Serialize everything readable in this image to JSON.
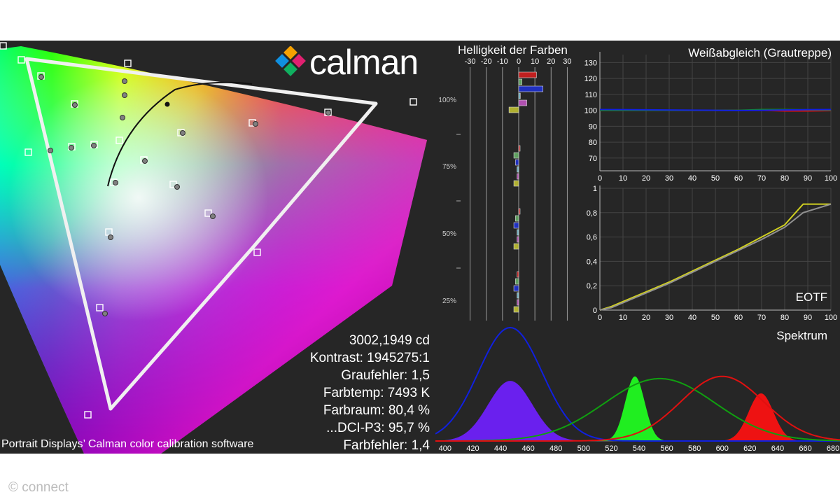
{
  "brand": {
    "name": "calman"
  },
  "caption": "Portrait Displays’ Calman color calibration software",
  "credit": "© connect",
  "stats": [
    "3002,1949 cd",
    "Kontrast: 1945275:1",
    "Graufehler: 1,5",
    "Farbtemp: 7493 K",
    "Farbraum: 80,4 %",
    "...DCI-P3: 95,7 %",
    "Farbfehler: 1,4"
  ],
  "colors": {
    "background": "#262626",
    "gamut_line": "#ffffff",
    "red": "#e01010",
    "green": "#10a010",
    "blue": "#1020e0",
    "yellow": "#f0f020",
    "grey": "#909090"
  },
  "chart_data": [
    {
      "id": "cie",
      "type": "scatter",
      "title": "",
      "description_words": "CIE chromaticity diagram with measured gamut triangle",
      "gamut_triangle_vertices": [
        "red",
        "green",
        "blue"
      ]
    },
    {
      "id": "brightness",
      "type": "bar",
      "title": "Helligkeit der Farben",
      "xticks": [
        "-30",
        "-20",
        "-10",
        "0",
        "10",
        "20",
        "30"
      ],
      "xlim": [
        -35,
        35
      ],
      "yticks": [
        "100%",
        "75%",
        "50%",
        "25%"
      ],
      "groups": [
        {
          "level": "100%",
          "values": [
            11,
            2,
            15,
            1,
            5,
            -6
          ]
        },
        {
          "level": "75%",
          "values": [
            0,
            -3,
            -2,
            -1,
            -1,
            -3
          ]
        },
        {
          "level": "50%",
          "values": [
            0,
            -2,
            -3,
            -1,
            -1,
            -3
          ]
        },
        {
          "level": "25%",
          "values": [
            -1,
            -2,
            -3,
            -1,
            -1,
            -3
          ]
        }
      ],
      "bar_colors": [
        "red",
        "green",
        "blue",
        "cyan",
        "magenta",
        "yellow"
      ]
    },
    {
      "id": "whitebalance",
      "type": "line",
      "title": "Weißabgleich (Grautreppe)",
      "x": [
        0,
        10,
        20,
        30,
        40,
        50,
        60,
        70,
        80,
        90,
        100
      ],
      "xticks": [
        "0",
        "10",
        "20",
        "30",
        "40",
        "50",
        "60",
        "70",
        "80",
        "90",
        "100"
      ],
      "yticks": [
        "70",
        "80",
        "90",
        "100",
        "110",
        "120",
        "130"
      ],
      "ylim": [
        62,
        135
      ],
      "series": [
        {
          "color": "red",
          "values": [
            100,
            100,
            100,
            100,
            100,
            100,
            100,
            100,
            99.6,
            99.6,
            99.8
          ]
        },
        {
          "color": "green",
          "values": [
            100,
            100,
            100,
            100,
            100,
            100,
            100,
            100.5,
            100.5,
            100.3,
            100.2
          ]
        },
        {
          "color": "blue",
          "values": [
            100.5,
            100.4,
            100.3,
            100.2,
            100.1,
            100,
            99.9,
            100,
            100.2,
            100.4,
            100.5
          ]
        }
      ]
    },
    {
      "id": "eotf",
      "type": "line",
      "title": "EOTF",
      "x": [
        0,
        5,
        10,
        20,
        30,
        40,
        50,
        60,
        70,
        80,
        88,
        100
      ],
      "xticks": [
        "0",
        "10",
        "20",
        "30",
        "40",
        "50",
        "60",
        "70",
        "80",
        "90",
        "100"
      ],
      "yticks": [
        "0",
        "0,2",
        "0,4",
        "0,6",
        "0,8",
        "1"
      ],
      "ylim": [
        0,
        1
      ],
      "series": [
        {
          "color": "yellow",
          "values": [
            0,
            0.03,
            0.07,
            0.15,
            0.23,
            0.32,
            0.41,
            0.5,
            0.6,
            0.7,
            0.87,
            0.87
          ]
        },
        {
          "color": "grey",
          "values": [
            0,
            0.02,
            0.06,
            0.14,
            0.22,
            0.31,
            0.4,
            0.49,
            0.58,
            0.68,
            0.8,
            0.87
          ]
        }
      ]
    },
    {
      "id": "spectrum",
      "type": "area",
      "title": "Spektrum",
      "xticks": [
        "400",
        "420",
        "440",
        "460",
        "480",
        "500",
        "520",
        "540",
        "560",
        "580",
        "600",
        "620",
        "640",
        "660",
        "680"
      ],
      "xlim": [
        393,
        685
      ],
      "peaks": [
        {
          "color": "blue",
          "center": 447,
          "width": 16,
          "height": 0.53
        },
        {
          "color": "green",
          "center": 537,
          "width": 7,
          "height": 0.57
        },
        {
          "color": "red",
          "center": 628,
          "width": 9,
          "height": 0.42
        }
      ],
      "filter_curves": [
        {
          "color": "blue",
          "center": 447,
          "width": 23,
          "height": 1.0
        },
        {
          "color": "green",
          "center": 555,
          "width": 40,
          "height": 0.55
        },
        {
          "color": "red",
          "center": 600,
          "width": 30,
          "height": 0.57
        }
      ]
    }
  ]
}
